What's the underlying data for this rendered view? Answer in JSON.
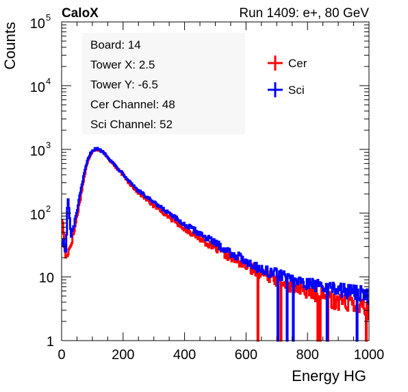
{
  "header": {
    "left_label": "CaloX",
    "right_label": "Run 1409: e+, 80 GeV"
  },
  "info_box": {
    "lines": [
      "Board: 14",
      "Tower X: 2.5",
      "Tower Y: -6.5",
      "Cer Channel: 48",
      "Sci Channel: 52"
    ]
  },
  "chart_data": {
    "type": "line",
    "title": "",
    "xlabel": "Energy HG",
    "ylabel": "Counts",
    "xlim": [
      0,
      1000
    ],
    "ylim": [
      1,
      100000
    ],
    "yscale": "log",
    "x_ticks": [
      "0",
      "200",
      "400",
      "600",
      "800",
      "1000"
    ],
    "y_ticks": [
      {
        "value": 1,
        "base": "1",
        "exp": ""
      },
      {
        "value": 10,
        "base": "10",
        "exp": ""
      },
      {
        "value": 100,
        "base": "10",
        "exp": "2"
      },
      {
        "value": 1000,
        "base": "10",
        "exp": "3"
      },
      {
        "value": 10000,
        "base": "10",
        "exp": "4"
      },
      {
        "value": 100000,
        "base": "10",
        "exp": "5"
      }
    ],
    "grid": false,
    "legend_position": "top-right",
    "series": [
      {
        "name": "Cer",
        "color": "#ff0000",
        "x": [
          0,
          5,
          10,
          15,
          20,
          30,
          40,
          50,
          60,
          70,
          80,
          90,
          100,
          110,
          120,
          130,
          140,
          150,
          160,
          180,
          200,
          220,
          250,
          280,
          300,
          330,
          360,
          400,
          450,
          500,
          550,
          600,
          650,
          700,
          750,
          800,
          850,
          900,
          950,
          1000
        ],
        "values": [
          90,
          60,
          25,
          20,
          24,
          32,
          50,
          90,
          160,
          300,
          520,
          760,
          950,
          1000,
          990,
          920,
          860,
          760,
          650,
          500,
          400,
          300,
          210,
          160,
          130,
          105,
          80,
          58,
          40,
          28,
          20,
          15,
          11,
          9,
          7,
          6,
          5,
          4,
          4,
          3
        ]
      },
      {
        "name": "Sci",
        "color": "#0000ff",
        "x": [
          0,
          5,
          10,
          15,
          20,
          30,
          40,
          50,
          60,
          70,
          80,
          90,
          100,
          110,
          120,
          130,
          140,
          150,
          160,
          180,
          200,
          220,
          250,
          280,
          300,
          330,
          360,
          400,
          450,
          500,
          550,
          600,
          650,
          700,
          750,
          800,
          850,
          900,
          950,
          1000
        ],
        "values": [
          30,
          40,
          28,
          25,
          200,
          45,
          60,
          110,
          190,
          340,
          560,
          800,
          960,
          1020,
          1010,
          940,
          870,
          780,
          670,
          520,
          420,
          320,
          225,
          175,
          145,
          115,
          90,
          66,
          48,
          34,
          24,
          18,
          13,
          11,
          9,
          8,
          7,
          6,
          6,
          5
        ]
      }
    ]
  }
}
